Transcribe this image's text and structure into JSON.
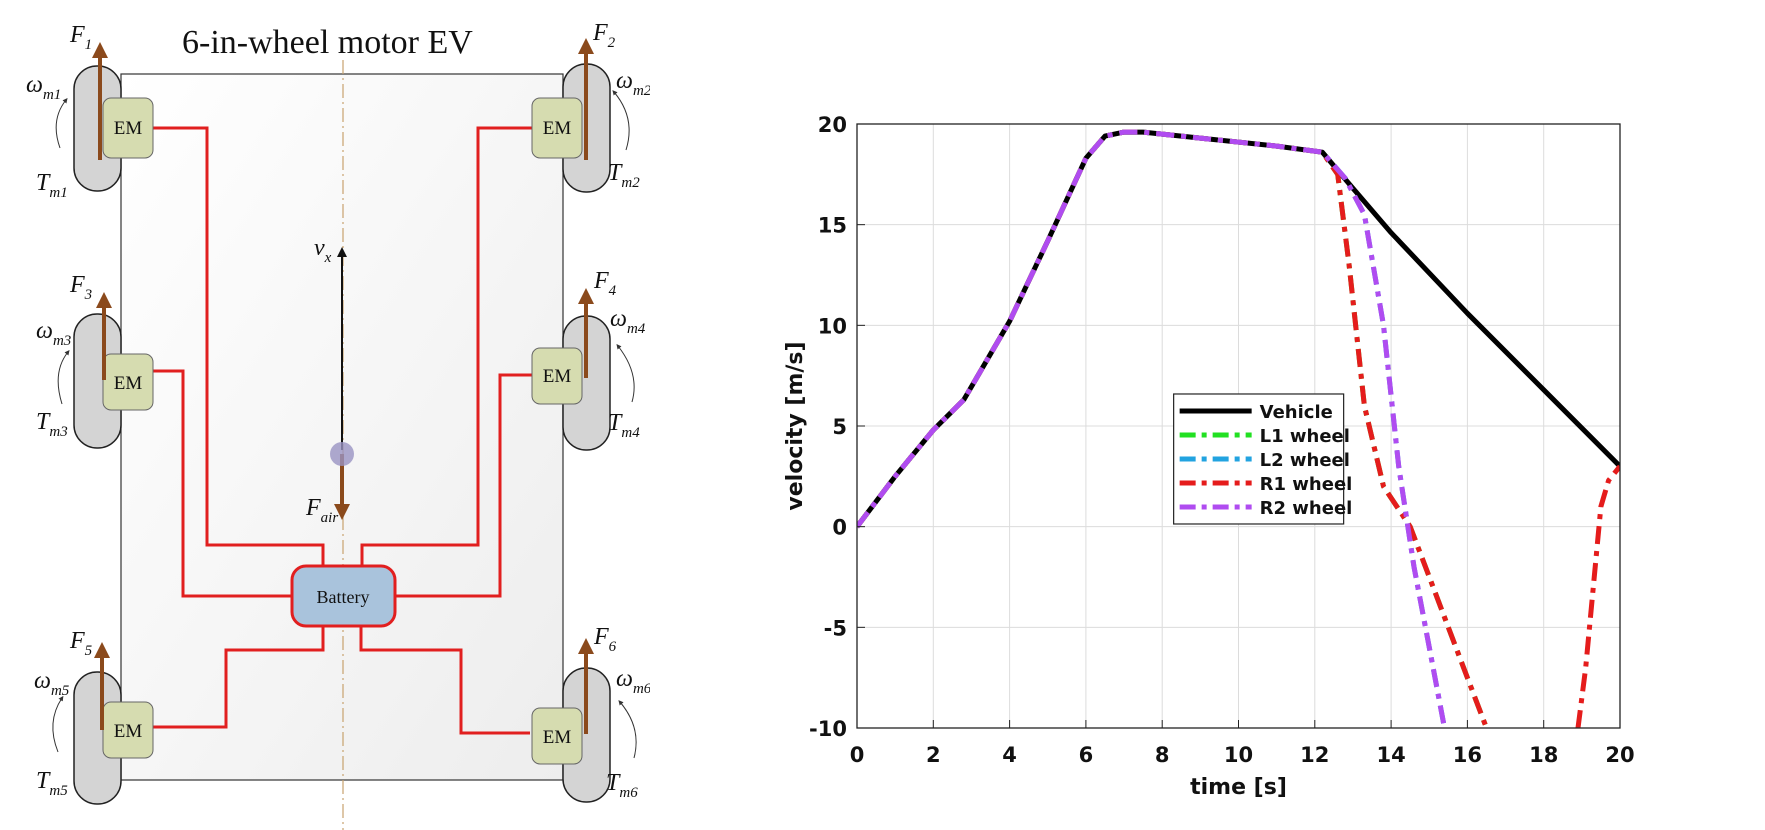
{
  "diagram": {
    "title": "6-in-wheel motor EV",
    "motor_label": "EM",
    "battery_label": "Battery",
    "velocity_label": {
      "main": "v",
      "sub": "x"
    },
    "air_force_label": {
      "main": "F",
      "sub": "air"
    },
    "wheels": [
      {
        "force": {
          "main": "F",
          "sub": "1"
        },
        "speed": {
          "main": "ω",
          "sub": "m1"
        },
        "torque": {
          "main": "T",
          "sub": "m1"
        }
      },
      {
        "force": {
          "main": "F",
          "sub": "2"
        },
        "speed": {
          "main": "ω",
          "sub": "m2"
        },
        "torque": {
          "main": "T",
          "sub": "m2"
        }
      },
      {
        "force": {
          "main": "F",
          "sub": "3"
        },
        "speed": {
          "main": "ω",
          "sub": "m3"
        },
        "torque": {
          "main": "T",
          "sub": "m3"
        }
      },
      {
        "force": {
          "main": "F",
          "sub": "4"
        },
        "speed": {
          "main": "ω",
          "sub": "m4"
        },
        "torque": {
          "main": "T",
          "sub": "m4"
        }
      },
      {
        "force": {
          "main": "F",
          "sub": "5"
        },
        "speed": {
          "main": "ω",
          "sub": "m5"
        },
        "torque": {
          "main": "T",
          "sub": "m5"
        }
      },
      {
        "force": {
          "main": "F",
          "sub": "6"
        },
        "speed": {
          "main": "ω",
          "sub": "m6"
        },
        "torque": {
          "main": "T",
          "sub": "m6"
        }
      }
    ],
    "colors": {
      "power_line": "#e11f1f",
      "force_arrow": "#8b4a1c",
      "motor_fill": "#d6dcb0",
      "battery_fill": "#a9c3dc",
      "wheel_fill": "#d4d4d4",
      "body_fill": "#f3f3f3"
    }
  },
  "chart_data": {
    "type": "line",
    "xlabel": "time [s]",
    "ylabel": "velocity [m/s]",
    "xlim": [
      0,
      20
    ],
    "ylim": [
      -10,
      20
    ],
    "xticks": [
      "0",
      "2",
      "4",
      "6",
      "8",
      "10",
      "12",
      "14",
      "16",
      "18",
      "20"
    ],
    "yticks": [
      "-10",
      "-5",
      "0",
      "5",
      "10",
      "15",
      "20"
    ],
    "grid": true,
    "legend_position": "center",
    "series": [
      {
        "name": "Vehicle",
        "color": "#000000",
        "style": "solid",
        "x": [
          0,
          1,
          2,
          2.8,
          4,
          5,
          6,
          6.5,
          7,
          7.5,
          9,
          11,
          12.2,
          13,
          14,
          16,
          18,
          20
        ],
        "y": [
          0,
          2.5,
          4.8,
          6.3,
          10.2,
          14.2,
          18.3,
          19.4,
          19.6,
          19.6,
          19.3,
          18.9,
          18.6,
          16.8,
          14.6,
          10.6,
          6.8,
          3
        ]
      },
      {
        "name": "L1 wheel",
        "color": "#22e022",
        "style": "dashdot",
        "x": [
          0,
          1,
          2,
          2.8,
          4,
          5,
          6,
          6.5,
          7,
          7.5,
          9,
          11,
          12.2,
          12.6,
          12.9,
          13.3,
          13.8,
          14.5,
          15,
          15.5,
          16,
          16.5
        ],
        "y": [
          0,
          2.5,
          4.8,
          6.3,
          10.2,
          14.2,
          18.3,
          19.4,
          19.6,
          19.6,
          19.3,
          18.9,
          18.6,
          17.5,
          13,
          6,
          2,
          0,
          -2.5,
          -5,
          -7.5,
          -10
        ]
      },
      {
        "name": "L2 wheel",
        "color": "#22a3e0",
        "style": "dashdot",
        "x": [
          0,
          1,
          2,
          2.8,
          4,
          5,
          6,
          6.5,
          7,
          7.5,
          9,
          11,
          12.2,
          12.8,
          13.3,
          13.8,
          14.2,
          14.6,
          15,
          15.4
        ],
        "y": [
          0,
          2.5,
          4.8,
          6.3,
          10.2,
          14.2,
          18.3,
          19.4,
          19.6,
          19.6,
          19.3,
          18.9,
          18.6,
          17.3,
          15.5,
          10,
          3,
          -2,
          -6,
          -10
        ]
      },
      {
        "name": "R1 wheel",
        "color": "#e51c1c",
        "style": "dashdot",
        "x": [
          0,
          1,
          2,
          2.8,
          4,
          5,
          6,
          6.5,
          7,
          7.5,
          9,
          11,
          12.2,
          12.6,
          12.9,
          13.3,
          13.8,
          14.5,
          15,
          15.5,
          16,
          16.5
        ],
        "y": [
          0,
          2.5,
          4.8,
          6.3,
          10.2,
          14.2,
          18.3,
          19.4,
          19.6,
          19.6,
          19.3,
          18.9,
          18.6,
          17.5,
          13,
          6,
          2,
          0,
          -2.5,
          -5,
          -7.5,
          -10
        ]
      },
      {
        "name": "R2 wheel",
        "color": "#b04cf0",
        "style": "dashdot",
        "x": [
          0,
          1,
          2,
          2.8,
          4,
          5,
          6,
          6.5,
          7,
          7.5,
          9,
          11,
          12.2,
          12.8,
          13.3,
          13.8,
          14.2,
          14.6,
          15,
          15.4
        ],
        "y": [
          0,
          2.5,
          4.8,
          6.3,
          10.2,
          14.2,
          18.3,
          19.4,
          19.6,
          19.6,
          19.3,
          18.9,
          18.6,
          17.3,
          15.5,
          10,
          3,
          -2,
          -6,
          -10
        ]
      },
      {
        "name": "",
        "color": "#e51c1c",
        "style": "dashdot",
        "legend": false,
        "x": [
          18.9,
          19.1,
          19.3,
          19.5,
          19.7,
          20
        ],
        "y": [
          -10,
          -7,
          -3,
          1,
          2.3,
          3
        ]
      }
    ]
  }
}
